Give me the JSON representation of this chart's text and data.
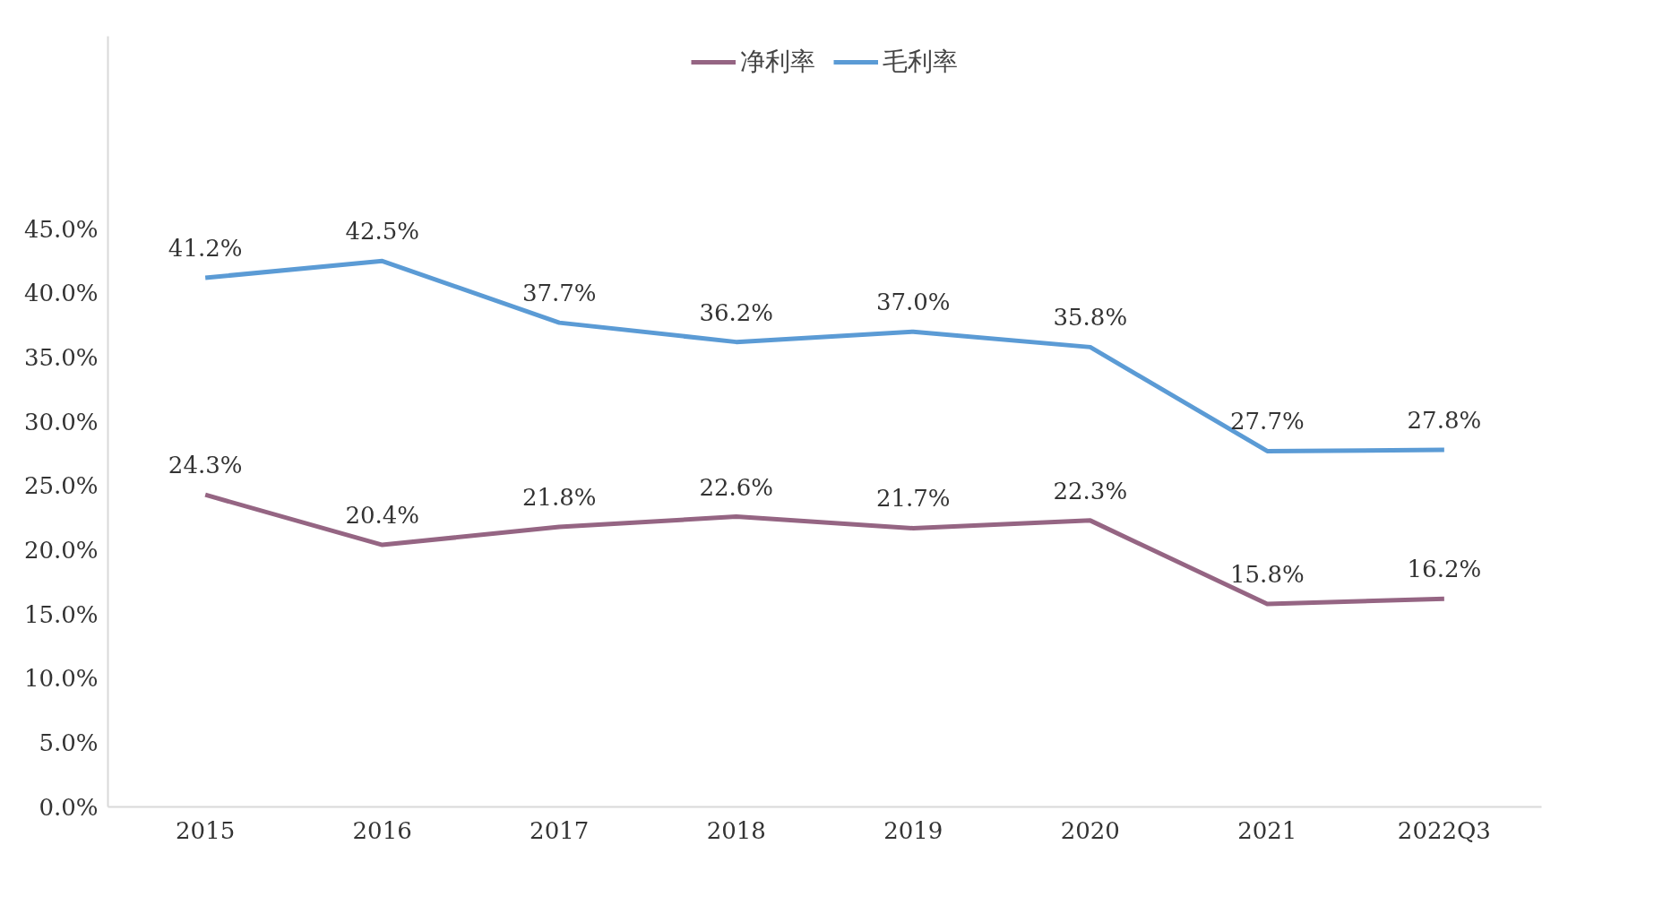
{
  "chart_data": {
    "type": "line",
    "categories": [
      "2015",
      "2016",
      "2017",
      "2018",
      "2019",
      "2020",
      "2021",
      "2022Q3"
    ],
    "series": [
      {
        "name": "净利率",
        "color": "#956583",
        "values": [
          24.3,
          20.4,
          21.8,
          22.6,
          21.7,
          22.3,
          15.8,
          16.2
        ],
        "value_labels": [
          "24.3%",
          "20.4%",
          "21.8%",
          "22.6%",
          "21.7%",
          "22.3%",
          "15.8%",
          "16.2%"
        ]
      },
      {
        "name": "毛利率",
        "color": "#5b9bd5",
        "values": [
          41.2,
          42.5,
          37.7,
          36.2,
          37.0,
          35.8,
          27.7,
          27.8
        ],
        "value_labels": [
          "41.2%",
          "42.5%",
          "37.7%",
          "36.2%",
          "37.0%",
          "35.8%",
          "27.7%",
          "27.8%"
        ]
      }
    ],
    "ylim": [
      0,
      60
    ],
    "yticks": [
      {
        "value": 0,
        "label": "0.0%"
      },
      {
        "value": 5,
        "label": "5.0%"
      },
      {
        "value": 10,
        "label": "10.0%"
      },
      {
        "value": 15,
        "label": "15.0%"
      },
      {
        "value": 20,
        "label": "20.0%"
      },
      {
        "value": 25,
        "label": "25.0%"
      },
      {
        "value": 30,
        "label": "30.0%"
      },
      {
        "value": 35,
        "label": "35.0%"
      },
      {
        "value": 40,
        "label": "40.0%"
      },
      {
        "value": 45,
        "label": "45.0%"
      }
    ],
    "grid": false,
    "legend": "top",
    "marker": "none",
    "line_style": "solid"
  }
}
